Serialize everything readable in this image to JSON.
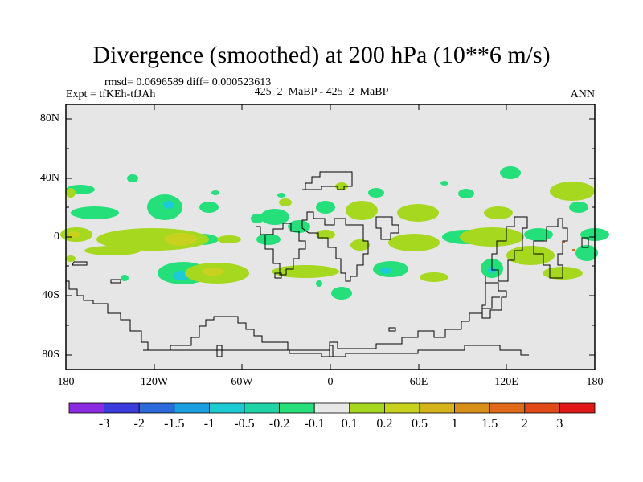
{
  "title": "Divergence (smoothed) at 200 hPa (10**6 m/s)",
  "stats": "rmsd= 0.0696589 diff= 0.000523613",
  "experiment": "Expt = tfKEh-tfJAh",
  "case": "425_2_MaBP - 425_2_MaBP",
  "season": "ANN",
  "y_ticks": [
    "80N",
    "40N",
    "0",
    "40S",
    "80S"
  ],
  "x_ticks": [
    "180",
    "120W",
    "60W",
    "0",
    "60E",
    "120E",
    "180"
  ],
  "colorbar": {
    "colors": [
      "#8a2be2",
      "#3b3bdc",
      "#2b6ad8",
      "#1aa0e0",
      "#1ccbd6",
      "#1fd4a6",
      "#25df7a",
      "#e8e8e8",
      "#a6d81f",
      "#c8d21e",
      "#d4b41c",
      "#d9901a",
      "#e06a18",
      "#e04a18",
      "#e01818"
    ],
    "labels": [
      "-3",
      "-2",
      "-1.5",
      "-1",
      "-0.5",
      "-0.2",
      "-0.1",
      "0.1",
      "0.2",
      "0.5",
      "1",
      "1.5",
      "2",
      "3"
    ]
  },
  "colors": {
    "background": "#e6e6e6",
    "coast": "#000000",
    "positive_light": "#a6d81f",
    "positive_mid": "#c8d21e",
    "negative_light": "#25df7a",
    "negative_mid": "#1ccbd6"
  }
}
